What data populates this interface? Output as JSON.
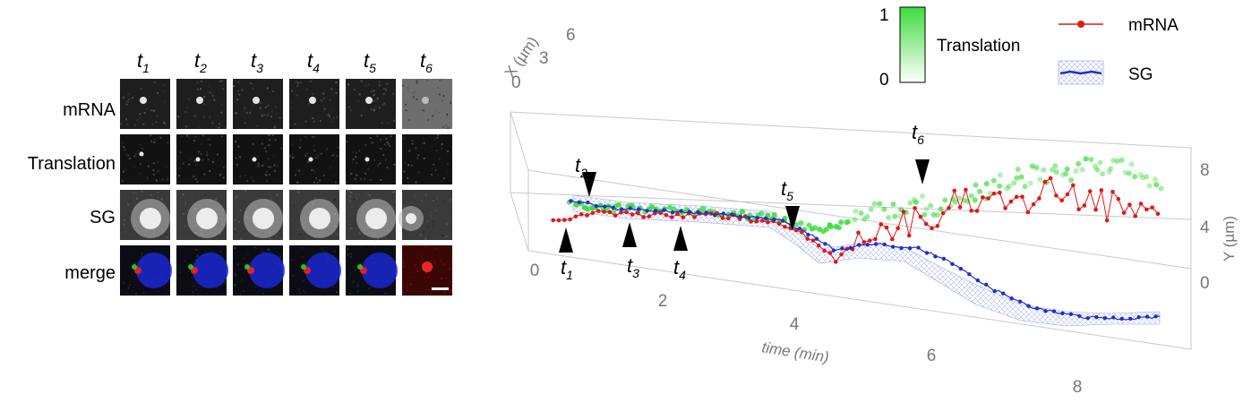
{
  "panel": {
    "time_labels": [
      {
        "base": "t",
        "sub": "1"
      },
      {
        "base": "t",
        "sub": "2"
      },
      {
        "base": "t",
        "sub": "3"
      },
      {
        "base": "t",
        "sub": "4"
      },
      {
        "base": "t",
        "sub": "5"
      },
      {
        "base": "t",
        "sub": "6"
      }
    ],
    "row_labels": [
      "mRNA",
      "Translation",
      "SG",
      "merge"
    ]
  },
  "chart_data": {
    "type": "line",
    "projection": "3d",
    "xlabel": "time (min)",
    "ylabel": "Y (µm)",
    "zlabel": "X (µm)",
    "x_ticks": [
      0,
      2,
      4,
      6,
      8
    ],
    "y_ticks": [
      0,
      4,
      8
    ],
    "z_ticks": [
      0,
      3,
      6
    ],
    "xlim": [
      0,
      9
    ],
    "ylim": [
      0,
      9
    ],
    "colorbar": {
      "title": "Translation",
      "min_label": "0",
      "max_label": "1",
      "colors": [
        "#ffffff",
        "#3ddc3d"
      ]
    },
    "legend": [
      {
        "name": "mRNA",
        "color": "#e01818"
      },
      {
        "name": "SG",
        "color": "#1d2fd0"
      }
    ],
    "annotations": [
      {
        "base": "t",
        "sub": "1",
        "time": 0.3
      },
      {
        "base": "t",
        "sub": "2",
        "time": 0.6
      },
      {
        "base": "t",
        "sub": "3",
        "time": 1.4
      },
      {
        "base": "t",
        "sub": "4",
        "time": 2.1
      },
      {
        "base": "t",
        "sub": "5",
        "time": 4.0
      },
      {
        "base": "t",
        "sub": "6",
        "time": 5.8
      }
    ]
  }
}
